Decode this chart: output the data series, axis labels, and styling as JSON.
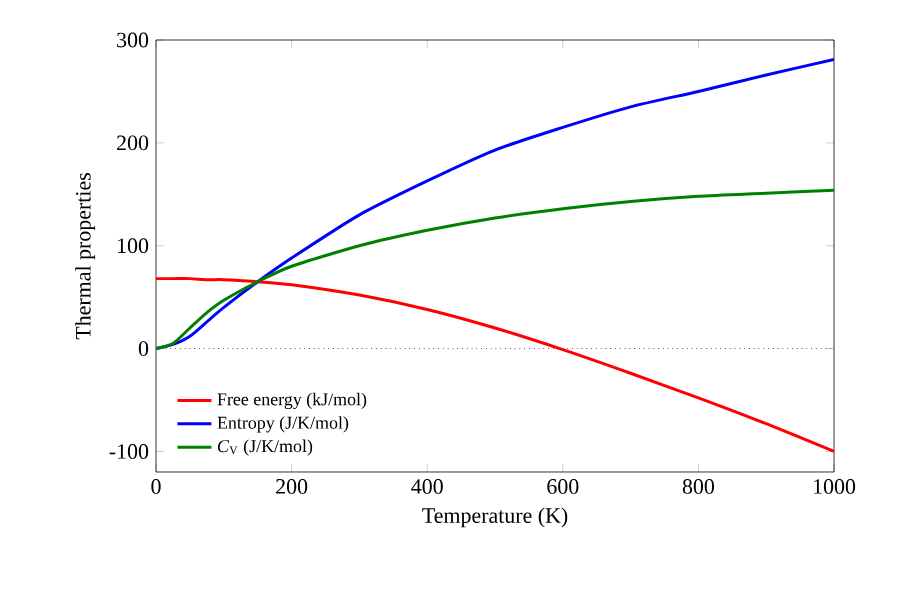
{
  "chart_data": {
    "type": "line",
    "xlabel": "Temperature (K)",
    "ylabel": "Thermal properties",
    "x": [
      0,
      25,
      50,
      75,
      100,
      150,
      200,
      300,
      400,
      500,
      600,
      700,
      800,
      900,
      1000
    ],
    "series": [
      {
        "name": "Free energy (kJ/mol)",
        "color": "#ff0000",
        "values": [
          68,
          68,
          68,
          67,
          67,
          65,
          62,
          52,
          38,
          20,
          -1,
          -24,
          -48,
          -73,
          -100
        ]
      },
      {
        "name": "Entropy (J/K/mol)",
        "color": "#0000ff",
        "values": [
          0,
          4,
          12,
          26,
          40,
          65,
          88,
          130,
          163,
          193,
          215,
          235,
          250,
          266,
          281
        ]
      },
      {
        "name": "*C*$_{V}$ (J/K/mol)",
        "color": "#008000",
        "values": [
          0,
          5,
          20,
          35,
          47,
          65,
          80,
          100,
          115,
          127,
          136,
          143,
          148,
          151,
          154
        ]
      }
    ],
    "xlim": [
      0,
      1000
    ],
    "ylim": [
      -120,
      300
    ],
    "xticks": [
      0,
      200,
      400,
      600,
      800,
      1000
    ],
    "yticks": [
      -100,
      0,
      100,
      200,
      300
    ],
    "ref_lines": [
      {
        "axis": "y",
        "value": 0,
        "color": "#000000",
        "line_style": "dotted"
      }
    ],
    "legend": "bottom left",
    "grid": false,
    "marker": "none",
    "line_style": "solid"
  }
}
